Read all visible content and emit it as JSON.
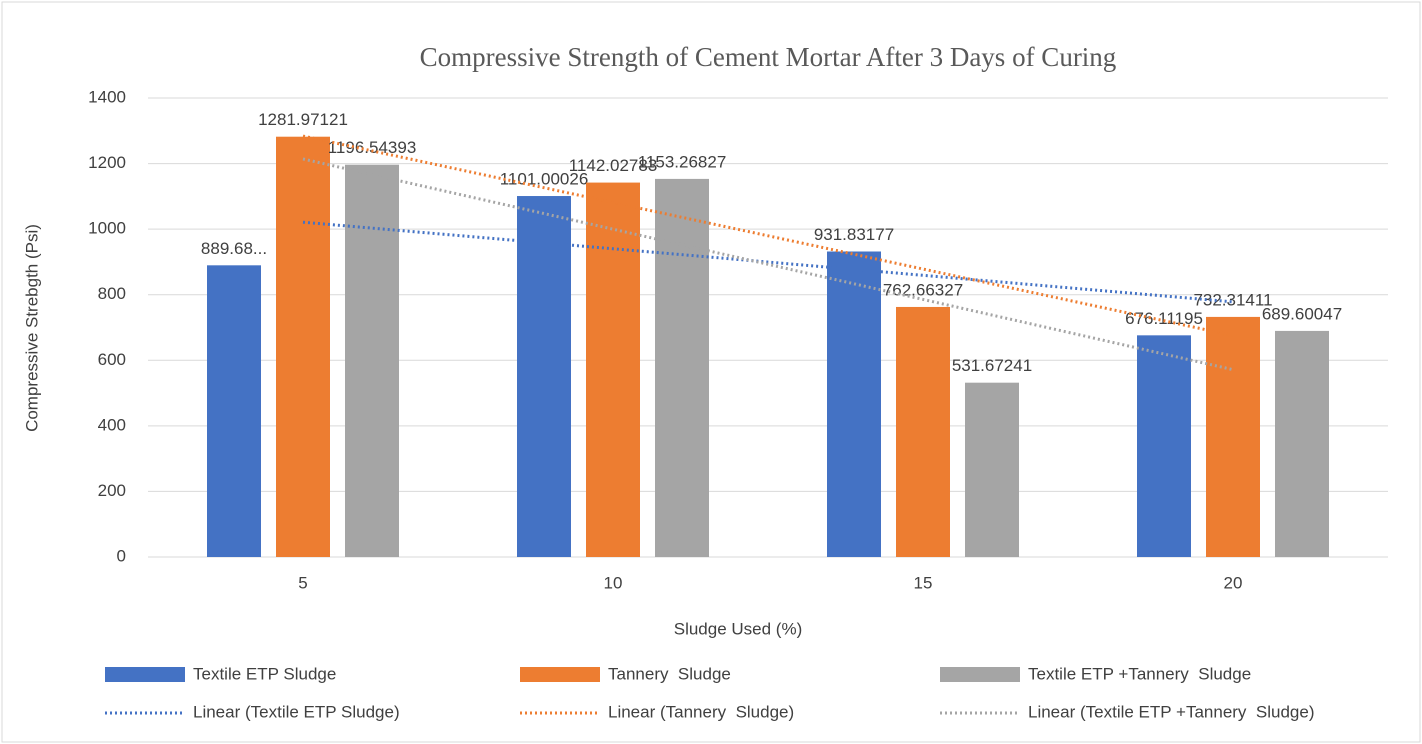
{
  "chart_data": {
    "type": "bar",
    "title": "Compressive Strength of Cement Mortar After 3 Days of Curing",
    "x_label": "Sludge Used (%)",
    "y_label": "Compressive Strebgth (Psi)",
    "categories": [
      "5",
      "10",
      "15",
      "20"
    ],
    "series": [
      {
        "name": "Textile ETP Sludge",
        "color": "#4472c4",
        "values": [
          889.68,
          1101.00026,
          931.83177,
          676.11195
        ],
        "value_labels": [
          "889.68...",
          "1101.00026",
          "931.83177",
          "676.11195"
        ],
        "trendline": {
          "name": "Linear (Textile ETP Sludge)",
          "color": "#4472c4"
        }
      },
      {
        "name": "Tannery  Sludge",
        "color": "#ed7d31",
        "values": [
          1281.97121,
          1142.02783,
          762.66327,
          732.31411
        ],
        "trendline": {
          "name": "Linear (Tannery  Sludge)",
          "color": "#ed7d31"
        }
      },
      {
        "name": "Textile ETP +Tannery  Sludge",
        "color": "#a5a5a5",
        "values": [
          1196.54393,
          1153.26827,
          531.67241,
          689.60047
        ],
        "trendline": {
          "name": "Linear (Textile ETP +Tannery  Sludge)",
          "color": "#a5a5a5"
        }
      }
    ],
    "ylim": [
      0,
      1400
    ],
    "yticks": [
      0,
      200,
      400,
      600,
      800,
      1000,
      1200,
      1400
    ],
    "grid": true,
    "legend": "bottom"
  }
}
